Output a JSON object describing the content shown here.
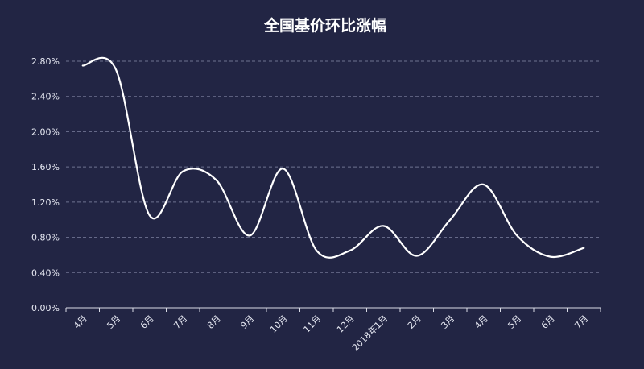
{
  "chart_data": {
    "type": "line",
    "title": "全国基价环比涨幅",
    "categories": [
      "4月",
      "5月",
      "6月",
      "7月",
      "8月",
      "9月",
      "10月",
      "11月",
      "12月",
      "2018年1月",
      "2月",
      "3月",
      "4月",
      "5月",
      "6月",
      "7月"
    ],
    "series": [
      {
        "values": [
          2.75,
          2.7,
          1.05,
          1.55,
          1.45,
          0.82,
          1.58,
          0.65,
          0.65,
          0.93,
          0.59,
          1.0,
          1.4,
          0.82,
          0.58,
          0.68
        ]
      }
    ],
    "ylim": [
      0,
      2.8
    ],
    "yticks": [
      "0.00%",
      "0.40%",
      "0.80%",
      "1.20%",
      "1.60%",
      "2.00%",
      "2.40%",
      "2.80%"
    ],
    "ytick_values": [
      0,
      0.4,
      0.8,
      1.2,
      1.6,
      2.0,
      2.4,
      2.8
    ],
    "grid": true,
    "line_color": "#ffffff",
    "background_color": "#222544"
  }
}
